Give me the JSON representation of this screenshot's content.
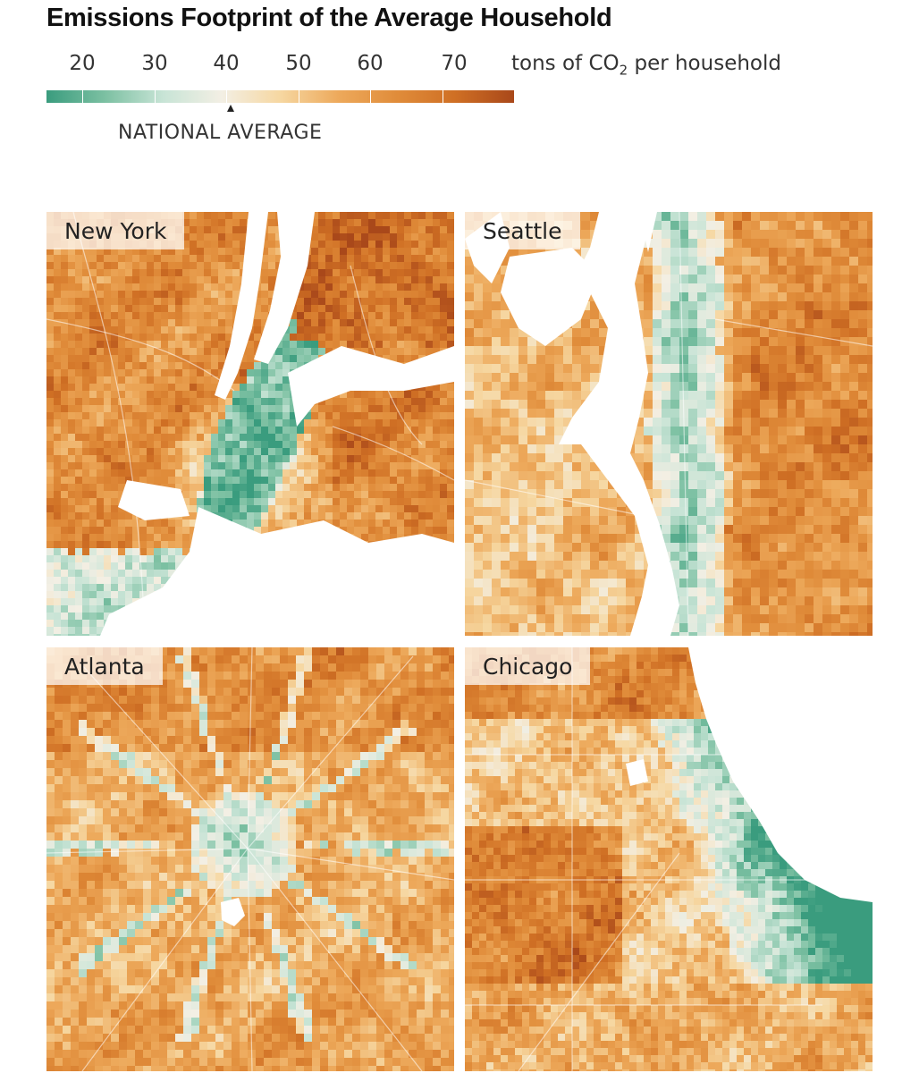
{
  "title": "Emissions Footprint of the Average Household",
  "legend": {
    "ticks": [
      "20",
      "30",
      "40",
      "50",
      "60",
      "70"
    ],
    "tick_values": [
      20,
      30,
      40,
      50,
      60,
      70
    ],
    "unit_prefix": "tons of CO",
    "unit_subscript": "2",
    "unit_suffix": " per household",
    "range": [
      14,
      79
    ],
    "national_average": 40.6,
    "national_average_label": "NATIONAL AVERAGE",
    "colors": [
      "#3a9c7e",
      "#7cc0a2",
      "#c8e4d6",
      "#f3efe4",
      "#f6d7a1",
      "#eda95b",
      "#e08c3a",
      "#cf6f24",
      "#a9481a"
    ]
  },
  "maps": [
    {
      "name": "New York",
      "water_color": "#ffffff"
    },
    {
      "name": "Seattle",
      "water_color": "#ffffff"
    },
    {
      "name": "Atlanta",
      "water_color": "#ffffff"
    },
    {
      "name": "Chicago",
      "water_color": "#ffffff"
    }
  ]
}
